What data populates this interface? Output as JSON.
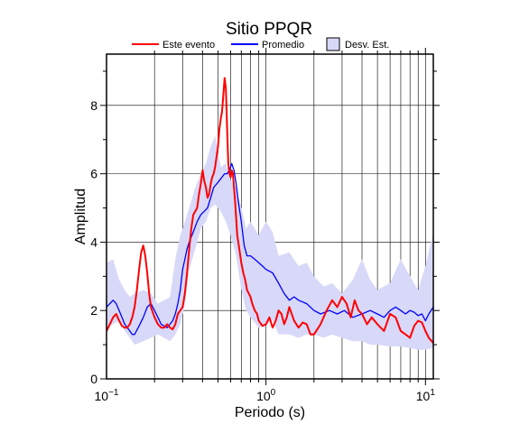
{
  "chart_data": {
    "type": "line",
    "title": "Sitio PPQR",
    "xlabel": "Periodo (s)",
    "ylabel": "Amplitud",
    "x_scale": "log",
    "xlim": [
      0.1,
      11.2
    ],
    "ylim": [
      0,
      9.5
    ],
    "x_ticks": [
      {
        "value": 0.1,
        "base": "10",
        "exp": "−1"
      },
      {
        "value": 1,
        "base": "10",
        "exp": "0"
      },
      {
        "value": 10,
        "base": "10",
        "exp": "1"
      }
    ],
    "y_ticks": [
      0,
      2,
      4,
      6,
      8
    ],
    "grid": true,
    "legend_position": "top",
    "legend": [
      {
        "label": "Este evento",
        "kind": "line",
        "color": "#ff0000"
      },
      {
        "label": "Promedio",
        "kind": "line",
        "color": "#0000ff"
      },
      {
        "label": "Desv. Est.",
        "kind": "band",
        "color": "#d8d8f8"
      }
    ],
    "band": {
      "name": "Desv. Est.",
      "color": "#d8d8f8",
      "x": [
        0.1,
        0.11,
        0.12,
        0.13,
        0.14,
        0.15,
        0.17,
        0.19,
        0.21,
        0.23,
        0.25,
        0.27,
        0.29,
        0.31,
        0.33,
        0.36,
        0.39,
        0.42,
        0.45,
        0.48,
        0.52,
        0.56,
        0.6,
        0.65,
        0.7,
        0.75,
        0.8,
        0.9,
        1.0,
        1.1,
        1.2,
        1.4,
        1.6,
        1.8,
        2.0,
        2.3,
        2.6,
        3.0,
        3.5,
        4.0,
        4.5,
        5.0,
        6.0,
        7.0,
        8.0,
        9.0,
        10.0,
        11.2
      ],
      "upper": [
        3.4,
        3.5,
        2.9,
        2.6,
        2.4,
        2.5,
        2.6,
        2.5,
        2.2,
        2.3,
        2.4,
        3.5,
        4.2,
        4.6,
        5.0,
        5.6,
        6.0,
        6.3,
        6.8,
        7.1,
        6.2,
        6.3,
        5.8,
        5.6,
        5.0,
        4.4,
        4.6,
        4.2,
        4.6,
        4.3,
        3.6,
        3.7,
        3.3,
        3.4,
        3.0,
        2.7,
        2.8,
        2.5,
        2.9,
        3.5,
        2.9,
        2.6,
        2.8,
        3.5,
        3.0,
        2.6,
        3.3,
        4.3
      ],
      "lower": [
        1.5,
        1.6,
        1.7,
        1.4,
        1.2,
        1.0,
        1.1,
        1.2,
        1.3,
        1.2,
        1.1,
        1.3,
        1.6,
        2.2,
        3.2,
        3.8,
        4.4,
        4.6,
        5.0,
        5.1,
        4.9,
        4.6,
        4.2,
        3.6,
        2.6,
        2.0,
        1.8,
        1.5,
        1.6,
        1.7,
        1.3,
        1.3,
        1.2,
        1.3,
        1.3,
        1.2,
        1.3,
        1.2,
        1.1,
        1.1,
        1.0,
        1.0,
        0.95,
        0.95,
        0.9,
        0.85,
        0.85,
        0.9
      ]
    },
    "series": [
      {
        "name": "Este evento",
        "color": "#ff0000",
        "x": [
          0.1,
          0.105,
          0.11,
          0.115,
          0.12,
          0.125,
          0.13,
          0.135,
          0.14,
          0.145,
          0.15,
          0.155,
          0.16,
          0.165,
          0.17,
          0.175,
          0.18,
          0.185,
          0.19,
          0.2,
          0.21,
          0.22,
          0.23,
          0.24,
          0.25,
          0.26,
          0.27,
          0.28,
          0.29,
          0.3,
          0.31,
          0.32,
          0.33,
          0.34,
          0.35,
          0.36,
          0.37,
          0.38,
          0.39,
          0.4,
          0.41,
          0.42,
          0.43,
          0.44,
          0.45,
          0.46,
          0.47,
          0.48,
          0.49,
          0.5,
          0.51,
          0.52,
          0.53,
          0.54,
          0.55,
          0.56,
          0.57,
          0.58,
          0.59,
          0.6,
          0.61,
          0.62,
          0.63,
          0.64,
          0.65,
          0.66,
          0.68,
          0.7,
          0.72,
          0.74,
          0.76,
          0.78,
          0.8,
          0.82,
          0.85,
          0.88,
          0.9,
          0.95,
          1.0,
          1.05,
          1.1,
          1.15,
          1.2,
          1.25,
          1.3,
          1.35,
          1.4,
          1.5,
          1.6,
          1.7,
          1.8,
          1.9,
          2.0,
          2.2,
          2.4,
          2.6,
          2.8,
          3.0,
          3.2,
          3.4,
          3.6,
          3.8,
          4.0,
          4.3,
          4.6,
          5.0,
          5.5,
          6.0,
          6.5,
          7.0,
          7.5,
          8.0,
          8.5,
          9.0,
          9.5,
          10.0,
          10.5,
          11.2
        ],
        "y": [
          1.4,
          1.6,
          1.8,
          1.9,
          1.7,
          1.55,
          1.5,
          1.5,
          1.6,
          1.8,
          2.1,
          2.6,
          3.2,
          3.7,
          3.9,
          3.6,
          3.1,
          2.5,
          2.1,
          1.8,
          1.6,
          1.5,
          1.5,
          1.6,
          1.5,
          1.45,
          1.6,
          1.9,
          2.0,
          2.1,
          2.5,
          3.1,
          3.8,
          4.4,
          4.8,
          4.9,
          5.0,
          5.4,
          5.7,
          6.1,
          5.8,
          5.6,
          5.3,
          5.4,
          5.7,
          5.9,
          6.0,
          6.2,
          6.5,
          6.8,
          7.3,
          7.6,
          7.8,
          8.3,
          8.8,
          8.5,
          7.4,
          6.3,
          6.0,
          5.9,
          6.1,
          6.0,
          5.6,
          5.2,
          4.7,
          4.2,
          3.8,
          3.4,
          3.1,
          2.9,
          2.6,
          2.5,
          2.4,
          2.2,
          2.0,
          1.9,
          1.7,
          1.55,
          1.6,
          1.8,
          1.5,
          1.7,
          2.0,
          1.9,
          1.6,
          1.8,
          2.1,
          1.7,
          1.5,
          1.65,
          1.6,
          1.3,
          1.3,
          1.6,
          2.0,
          2.3,
          2.1,
          2.4,
          2.2,
          1.8,
          2.3,
          2.0,
          1.9,
          1.6,
          1.8,
          1.6,
          1.4,
          1.9,
          1.8,
          1.4,
          1.3,
          1.2,
          1.55,
          1.7,
          1.65,
          1.4,
          1.2,
          1.05
        ]
      },
      {
        "name": "Promedio",
        "color": "#0000ff",
        "x": [
          0.1,
          0.105,
          0.11,
          0.115,
          0.12,
          0.125,
          0.13,
          0.135,
          0.14,
          0.145,
          0.15,
          0.16,
          0.17,
          0.18,
          0.19,
          0.2,
          0.21,
          0.22,
          0.23,
          0.24,
          0.25,
          0.26,
          0.27,
          0.28,
          0.29,
          0.3,
          0.31,
          0.32,
          0.33,
          0.35,
          0.37,
          0.39,
          0.41,
          0.43,
          0.45,
          0.47,
          0.49,
          0.51,
          0.53,
          0.55,
          0.57,
          0.59,
          0.61,
          0.63,
          0.65,
          0.67,
          0.7,
          0.73,
          0.76,
          0.8,
          0.85,
          0.9,
          0.95,
          1.0,
          1.1,
          1.2,
          1.3,
          1.4,
          1.5,
          1.6,
          1.8,
          2.0,
          2.2,
          2.5,
          2.8,
          3.1,
          3.5,
          4.0,
          4.5,
          5.0,
          5.5,
          6.0,
          6.5,
          7.0,
          7.5,
          8.0,
          8.5,
          9.0,
          9.5,
          10.0,
          10.5,
          11.2
        ],
        "y": [
          2.1,
          2.2,
          2.3,
          2.2,
          2.0,
          1.8,
          1.6,
          1.5,
          1.4,
          1.3,
          1.3,
          1.55,
          1.8,
          2.1,
          2.2,
          2.0,
          1.8,
          1.6,
          1.55,
          1.5,
          1.6,
          1.7,
          1.9,
          2.2,
          2.6,
          3.2,
          3.5,
          3.8,
          4.0,
          4.3,
          4.6,
          4.8,
          4.9,
          5.0,
          5.3,
          5.6,
          5.7,
          5.8,
          5.9,
          6.0,
          6.0,
          6.1,
          6.3,
          6.1,
          5.7,
          5.2,
          4.6,
          3.9,
          3.6,
          3.6,
          3.5,
          3.4,
          3.3,
          3.2,
          3.1,
          2.8,
          2.5,
          2.3,
          2.4,
          2.3,
          2.2,
          2.0,
          1.9,
          2.0,
          1.9,
          2.0,
          1.8,
          1.9,
          2.0,
          1.9,
          1.8,
          2.0,
          2.1,
          2.0,
          1.9,
          2.0,
          1.95,
          1.85,
          1.9,
          1.7,
          1.9,
          2.1
        ]
      }
    ]
  }
}
